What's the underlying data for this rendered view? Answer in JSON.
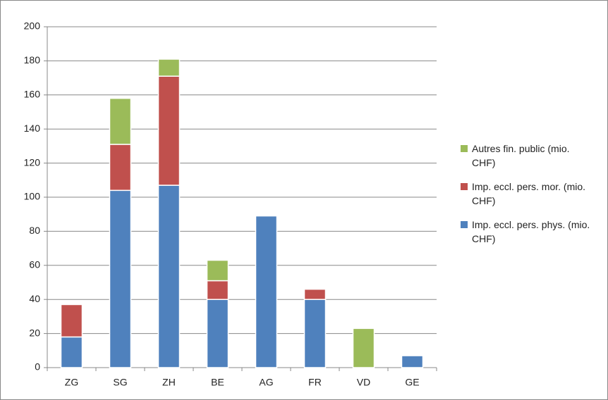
{
  "chart_data": {
    "type": "stacked_bar",
    "categories": [
      "ZG",
      "SG",
      "ZH",
      "BE",
      "AG",
      "FR",
      "VD",
      "GE"
    ],
    "series": [
      {
        "name": "Imp. eccl. pers. phys. (mio. CHF)",
        "color": "#4f81bd",
        "values": [
          18,
          104,
          107,
          40,
          89,
          40,
          0,
          7
        ]
      },
      {
        "name": "Imp. eccl. pers. mor. (mio. CHF)",
        "color": "#c0504d",
        "values": [
          19,
          27,
          64,
          11,
          0,
          6,
          0,
          0
        ]
      },
      {
        "name": "Autres fin. public (mio. CHF)",
        "color": "#9bbb59",
        "values": [
          0,
          27,
          10,
          12,
          0,
          0,
          23,
          0
        ]
      }
    ],
    "ylim": [
      0,
      200
    ],
    "yticks": [
      0,
      20,
      40,
      60,
      80,
      100,
      120,
      140,
      160,
      180,
      200
    ],
    "grid": true,
    "legend": "right"
  }
}
